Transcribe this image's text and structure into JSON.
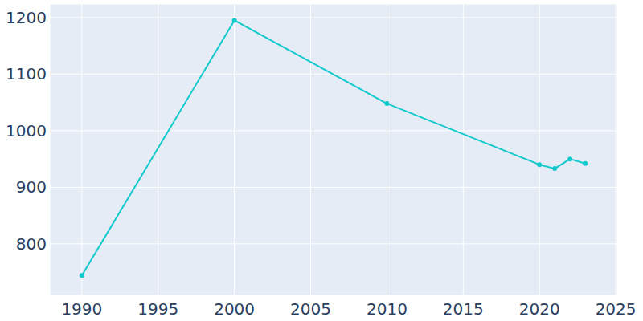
{
  "chart_data": {
    "type": "line",
    "x": [
      1990,
      2000,
      2010,
      2020,
      2021,
      2022,
      2023
    ],
    "values": [
      744,
      1195,
      1048,
      940,
      933,
      950,
      942
    ],
    "color": "#12c9cc",
    "marker": "circle",
    "xlim": [
      1987.9,
      2025.1
    ],
    "xticks": [
      1990,
      1995,
      2000,
      2005,
      2010,
      2015,
      2020,
      2025
    ],
    "ylim": [
      709,
      1224
    ],
    "yticks": [
      800,
      900,
      1000,
      1100,
      1200
    ],
    "grid": true
  }
}
